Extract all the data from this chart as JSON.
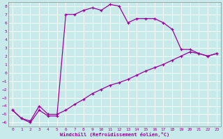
{
  "xlabel": "Windchill (Refroidissement éolien,°C)",
  "background_color": "#c8eaea",
  "line_color": "#990099",
  "grid_color": "#ffffff",
  "xlim": [
    -0.5,
    23.5
  ],
  "ylim": [
    -6.5,
    8.5
  ],
  "yticks": [
    -6,
    -5,
    -4,
    -3,
    -2,
    -1,
    0,
    1,
    2,
    3,
    4,
    5,
    6,
    7,
    8
  ],
  "xticks": [
    0,
    1,
    2,
    3,
    4,
    5,
    6,
    7,
    8,
    9,
    10,
    11,
    12,
    13,
    14,
    15,
    16,
    17,
    18,
    19,
    20,
    21,
    22,
    23
  ],
  "hours": [
    0,
    1,
    2,
    3,
    4,
    5,
    6,
    7,
    8,
    9,
    10,
    11,
    12,
    13,
    14,
    15,
    16,
    17,
    18,
    19,
    20,
    21,
    22,
    23
  ],
  "windchill": [
    -4.5,
    -5.5,
    -6.0,
    -4.5,
    -5.2,
    -5.2,
    7.0,
    7.0,
    7.5,
    7.8,
    7.5,
    8.2,
    8.0,
    6.0,
    6.5,
    6.5,
    6.5,
    6.0,
    5.2,
    2.8,
    2.8,
    2.3,
    2.0,
    2.3
  ],
  "temp": [
    -4.5,
    -5.5,
    -5.8,
    -4.0,
    -5.0,
    -5.0,
    -4.5,
    -3.8,
    -3.2,
    -2.5,
    -2.0,
    -1.5,
    -1.2,
    -0.8,
    -0.3,
    0.2,
    0.6,
    1.0,
    1.5,
    2.0,
    2.5,
    2.3,
    2.0,
    2.3
  ]
}
